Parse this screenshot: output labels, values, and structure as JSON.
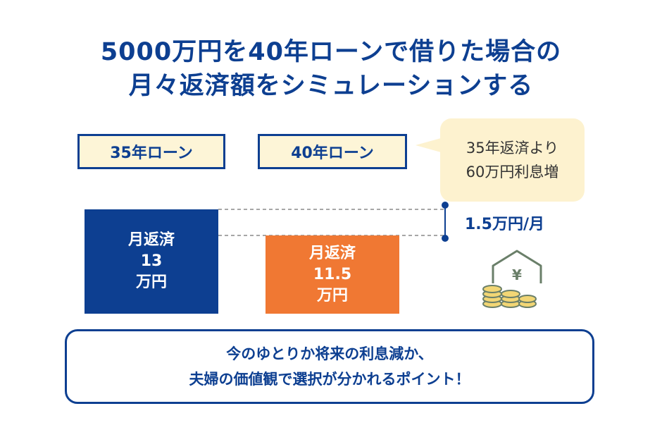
{
  "title": {
    "line1": "5000万円を40年ローンで借りた場合の",
    "line2": "月々返済額をシミュレーションする"
  },
  "labels": {
    "loan35": "35年ローン",
    "loan40": "40年ローン"
  },
  "bubble": {
    "line1": "35年返済より",
    "line2": "60万円利息増"
  },
  "bars": {
    "loan35": {
      "line1": "月返済",
      "value": "13",
      "unit": "万円"
    },
    "loan40": {
      "line1": "月返済",
      "value": "11.5",
      "unit": "万円"
    }
  },
  "difference": "1.5万円/月",
  "footer": {
    "line1": "今のゆとりか将来の利息減か、",
    "line2": "夫婦の価値観で選択が分かれるポイント！"
  },
  "colors": {
    "navy": "#0d3f91",
    "orange": "#f07833",
    "cream": "#fdf2cf",
    "icon_gold": "#e8c75a",
    "icon_green": "#6a7f69"
  },
  "icons": {
    "house": "house-yen-icon",
    "coins": "coin-stacks-icon"
  }
}
